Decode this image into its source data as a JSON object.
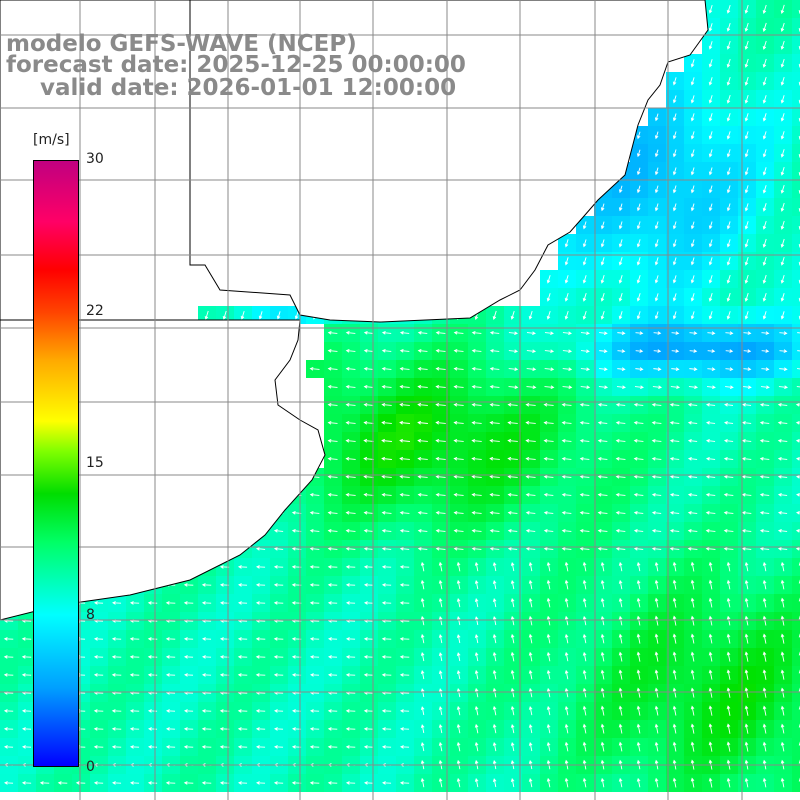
{
  "title": {
    "line1": "modelo GEFS-WAVE (NCEP)",
    "line2": "forecast date: 2025-12-25 00:00:00",
    "line3": "valid date: 2026-01-01 12:00:00"
  },
  "legend": {
    "unit": "[m/s]",
    "ticks": [
      "30",
      "22",
      "15",
      "8",
      "0"
    ],
    "tick_values": [
      30,
      22,
      15,
      8,
      0
    ],
    "range": [
      0,
      30
    ]
  },
  "colors": {
    "land": "#ffffff",
    "coast": "#000000",
    "grid": "#888888",
    "arrow": "#ffffff"
  }
}
